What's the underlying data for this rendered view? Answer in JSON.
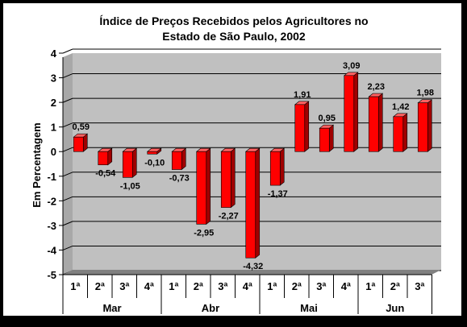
{
  "chart_data": {
    "type": "bar",
    "title_line1": "Índice de Preços Recebidos pelos Agricultores no",
    "title_line2": "Estado de São Paulo, 2002",
    "ylabel": "Em Percentagem",
    "xlabel": "",
    "ylim": [
      -5,
      4
    ],
    "yticks": [
      "4",
      "3",
      "2",
      "1",
      "0",
      "-1",
      "-2",
      "-3",
      "-4",
      "-5"
    ],
    "grid": true,
    "categories": [
      "1ª",
      "2ª",
      "3ª",
      "4ª",
      "1ª",
      "2ª",
      "3ª",
      "4ª",
      "1ª",
      "2ª",
      "3ª",
      "4ª",
      "1ª",
      "2ª",
      "3ª"
    ],
    "groups": [
      {
        "label": "Mar",
        "count": 4
      },
      {
        "label": "Abr",
        "count": 4
      },
      {
        "label": "Mai",
        "count": 4
      },
      {
        "label": "Jun",
        "count": 3
      }
    ],
    "values": [
      0.59,
      -0.54,
      -1.05,
      -0.1,
      -0.73,
      -2.95,
      -2.27,
      -4.32,
      -1.37,
      1.91,
      0.95,
      3.09,
      2.23,
      1.42,
      1.98
    ],
    "value_labels": [
      "0,59",
      "-0,54",
      "-1,05",
      "-0,10",
      "-0,73",
      "-2,95",
      "-2,27",
      "-4,32",
      "-1,37",
      "1,91",
      "0,95",
      "3,09",
      "2,23",
      "1,42",
      "1,98"
    ],
    "colors": {
      "background": "#ffffff",
      "outer": "#000000",
      "wall": "#c0c0c0",
      "floor": "#808080",
      "bar_front": "#ff0000",
      "bar_top": "#ff6060",
      "bar_side": "#a00000"
    }
  }
}
